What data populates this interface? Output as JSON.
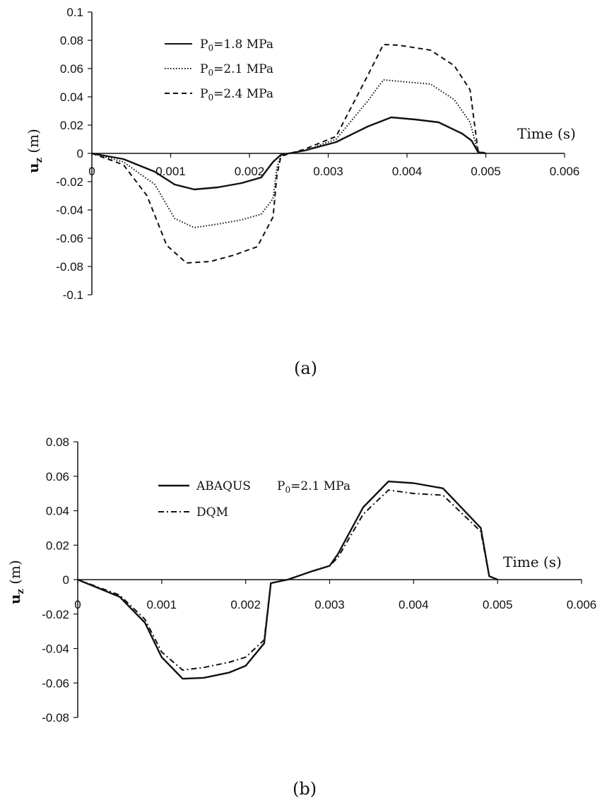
{
  "chart_data": [
    {
      "type": "line",
      "caption": "(a)",
      "xlabel": "Time (s)",
      "ylabel": "u_z (m)",
      "ylabel_main": "u",
      "ylabel_sub": "z",
      "ylabel_unit": " (m)",
      "xlim": [
        0,
        0.006
      ],
      "ylim": [
        -0.1,
        0.1
      ],
      "x_ticks": [
        "0",
        "0.001",
        "0.002",
        "0.003",
        "0.004",
        "0.005",
        "0.006"
      ],
      "y_ticks": [
        "0.1",
        "0.08",
        "0.06",
        "0.04",
        "0.02",
        "0",
        "-0.02",
        "-0.04",
        "-0.06",
        "-0.08",
        "-0.1"
      ],
      "legend_position": "top-left",
      "series": [
        {
          "name": "P0=1.8 MPa",
          "label_main": "P",
          "label_sub": "0",
          "label_rest": "=1.8 MPa",
          "style": "solid",
          "points": [
            [
              0,
              0
            ],
            [
              0.0004,
              -0.004
            ],
            [
              0.0008,
              -0.013
            ],
            [
              0.00105,
              -0.022
            ],
            [
              0.0013,
              -0.0255
            ],
            [
              0.0016,
              -0.024
            ],
            [
              0.0019,
              -0.021
            ],
            [
              0.00215,
              -0.017
            ],
            [
              0.0023,
              -0.006
            ],
            [
              0.0024,
              -0.001
            ],
            [
              0.0027,
              0.002
            ],
            [
              0.0031,
              0.008
            ],
            [
              0.0035,
              0.019
            ],
            [
              0.0038,
              0.0255
            ],
            [
              0.0041,
              0.024
            ],
            [
              0.0044,
              0.022
            ],
            [
              0.0047,
              0.014
            ],
            [
              0.00482,
              0.009
            ],
            [
              0.0049,
              0.001
            ],
            [
              0.005,
              0
            ]
          ]
        },
        {
          "name": "P0=2.1 MPa",
          "label_main": "P",
          "label_sub": "0",
          "label_rest": "=2.1 MPa",
          "style": "dotted",
          "points": [
            [
              0,
              0
            ],
            [
              0.0004,
              -0.006
            ],
            [
              0.0008,
              -0.022
            ],
            [
              0.00105,
              -0.046
            ],
            [
              0.0013,
              -0.0525
            ],
            [
              0.0016,
              -0.05
            ],
            [
              0.0019,
              -0.047
            ],
            [
              0.00215,
              -0.043
            ],
            [
              0.0023,
              -0.032
            ],
            [
              0.00235,
              -0.01
            ],
            [
              0.0024,
              -0.001
            ],
            [
              0.0027,
              0.002
            ],
            [
              0.0031,
              0.01
            ],
            [
              0.0035,
              0.037
            ],
            [
              0.0037,
              0.052
            ],
            [
              0.0039,
              0.051
            ],
            [
              0.0043,
              0.049
            ],
            [
              0.0046,
              0.038
            ],
            [
              0.0048,
              0.022
            ],
            [
              0.0049,
              0.001
            ],
            [
              0.005,
              0
            ]
          ]
        },
        {
          "name": "P0=2.4 MPa",
          "label_main": "P",
          "label_sub": "0",
          "label_rest": "=2.4 MPa",
          "style": "dashed",
          "points": [
            [
              0,
              0
            ],
            [
              0.0004,
              -0.008
            ],
            [
              0.0007,
              -0.03
            ],
            [
              0.00095,
              -0.065
            ],
            [
              0.0012,
              -0.0775
            ],
            [
              0.0015,
              -0.0765
            ],
            [
              0.0018,
              -0.072
            ],
            [
              0.0021,
              -0.066
            ],
            [
              0.0023,
              -0.045
            ],
            [
              0.00235,
              -0.015
            ],
            [
              0.0024,
              -0.002
            ],
            [
              0.0027,
              0.003
            ],
            [
              0.0031,
              0.012
            ],
            [
              0.0035,
              0.055
            ],
            [
              0.0037,
              0.077
            ],
            [
              0.0039,
              0.0765
            ],
            [
              0.0043,
              0.073
            ],
            [
              0.0046,
              0.062
            ],
            [
              0.0048,
              0.045
            ],
            [
              0.0049,
              0.002
            ],
            [
              0.005,
              0
            ]
          ]
        }
      ]
    },
    {
      "type": "line",
      "caption": "(b)",
      "xlabel": "Time (s)",
      "ylabel": "u_z (m)",
      "ylabel_main": "u",
      "ylabel_sub": "z",
      "ylabel_unit": " (m)",
      "xlim": [
        0,
        0.006
      ],
      "ylim": [
        -0.08,
        0.08
      ],
      "x_ticks": [
        "0",
        "0.001",
        "0.002",
        "0.003",
        "0.004",
        "0.005",
        "0.006"
      ],
      "y_ticks": [
        "0.08",
        "0.06",
        "0.04",
        "0.02",
        "0",
        "-0.02",
        "-0.04",
        "-0.06",
        "-0.08"
      ],
      "legend_position": "top-left",
      "annotation": {
        "main": "P",
        "sub": "0",
        "rest": "=2.1 MPa"
      },
      "series": [
        {
          "name": "ABAQUS",
          "style": "solid",
          "points": [
            [
              0,
              0
            ],
            [
              0.0005,
              -0.01
            ],
            [
              0.0008,
              -0.025
            ],
            [
              0.001,
              -0.045
            ],
            [
              0.00125,
              -0.0575
            ],
            [
              0.0015,
              -0.057
            ],
            [
              0.0018,
              -0.054
            ],
            [
              0.002,
              -0.05
            ],
            [
              0.00222,
              -0.037
            ],
            [
              0.0023,
              -0.002
            ],
            [
              0.0025,
              0
            ],
            [
              0.0028,
              0.005
            ],
            [
              0.003,
              0.008
            ],
            [
              0.0031,
              0.015
            ],
            [
              0.0034,
              0.042
            ],
            [
              0.0037,
              0.057
            ],
            [
              0.004,
              0.056
            ],
            [
              0.00435,
              0.053
            ],
            [
              0.0048,
              0.03
            ],
            [
              0.0049,
              0.002
            ],
            [
              0.005,
              0
            ]
          ]
        },
        {
          "name": "DQM",
          "style": "dashdot",
          "points": [
            [
              0,
              0
            ],
            [
              0.0005,
              -0.009
            ],
            [
              0.0008,
              -0.023
            ],
            [
              0.001,
              -0.042
            ],
            [
              0.00125,
              -0.0525
            ],
            [
              0.0015,
              -0.051
            ],
            [
              0.0018,
              -0.048
            ],
            [
              0.002,
              -0.045
            ],
            [
              0.00222,
              -0.035
            ],
            [
              0.0023,
              -0.002
            ],
            [
              0.0025,
              0
            ],
            [
              0.0028,
              0.005
            ],
            [
              0.003,
              0.008
            ],
            [
              0.0031,
              0.013
            ],
            [
              0.0034,
              0.038
            ],
            [
              0.0037,
              0.052
            ],
            [
              0.004,
              0.05
            ],
            [
              0.00435,
              0.049
            ],
            [
              0.0048,
              0.028
            ],
            [
              0.0049,
              0.002
            ],
            [
              0.005,
              0
            ]
          ]
        }
      ]
    }
  ]
}
